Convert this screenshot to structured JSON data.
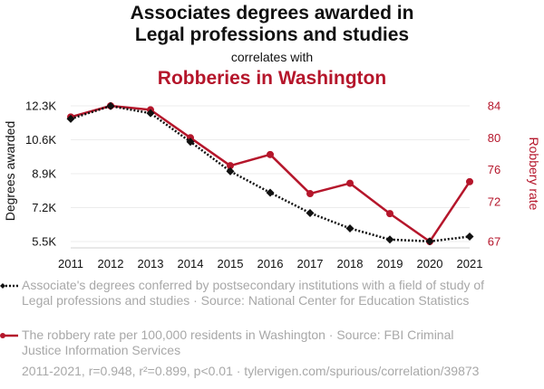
{
  "header": {
    "title_line1": "Associates degrees awarded in",
    "title_line2": "Legal professions and studies",
    "correlates": "correlates with",
    "title_series2": "Robberies in Washington"
  },
  "colors": {
    "series1": "#111111",
    "series2": "#b5162b",
    "grid": "#ececec",
    "muted": "#a8a8a8"
  },
  "chart_data": {
    "type": "line",
    "categories": [
      "2011",
      "2012",
      "2013",
      "2014",
      "2015",
      "2016",
      "2017",
      "2018",
      "2019",
      "2020",
      "2021"
    ],
    "left_axis": {
      "label": "Degrees awarded",
      "min": 5500,
      "max": 12300,
      "ticks": [
        5500,
        7200,
        8900,
        10600,
        12300
      ],
      "tick_labels": [
        "5.5K",
        "7.2K",
        "8.9K",
        "10.6K",
        "12.3K"
      ]
    },
    "right_axis": {
      "label": "Robbery rate",
      "min": 67,
      "max": 84,
      "ticks": [
        67,
        72,
        76,
        80,
        84
      ],
      "tick_labels": [
        "67",
        "72",
        "76",
        "80",
        "84"
      ]
    },
    "series": [
      {
        "name": "Associate's degrees conferred by postsecondary institutions with a field of study of Legal professions and studies · Source: National Center for Education Statistics",
        "axis": "left",
        "style": "dotted-diamond",
        "values": [
          11650,
          12290,
          11930,
          10500,
          9020,
          7950,
          6930,
          6160,
          5600,
          5510,
          5750
        ]
      },
      {
        "name": "The robbery rate per 100,000 residents in Washington · Source: FBI Criminal Justice Information Services",
        "axis": "right",
        "style": "solid-circle",
        "values": [
          82.6,
          84.0,
          83.5,
          80.0,
          76.5,
          77.9,
          73.0,
          74.3,
          70.5,
          67.0,
          74.5
        ]
      }
    ]
  },
  "legend": {
    "series1_text": "Associate's degrees conferred by postsecondary institutions with a field of study of Legal professions and studies · Source: National Center for Education Statistics",
    "series2_text": "The robbery rate per 100,000 residents in Washington · Source: FBI Criminal Justice Information Services"
  },
  "footer": "2011-2021, r=0.948, r²=0.899, p<0.01 · tylervigen.com/spurious/correlation/39873"
}
